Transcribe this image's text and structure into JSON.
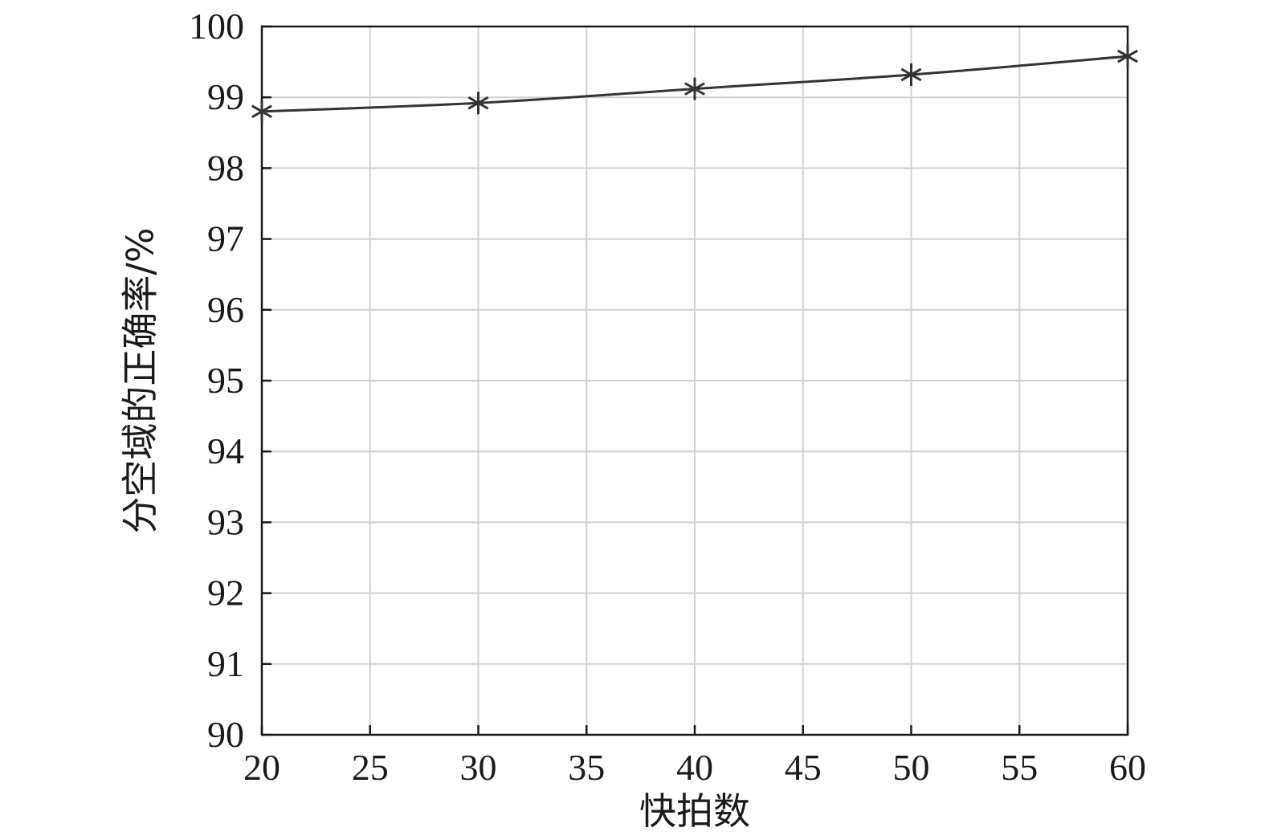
{
  "chart_data": {
    "type": "line",
    "xlabel": "快拍数",
    "ylabel": "分空域的正确率/%",
    "xlim": [
      20,
      60
    ],
    "ylim": [
      90,
      100
    ],
    "xticks": [
      20,
      25,
      30,
      35,
      40,
      45,
      50,
      55,
      60
    ],
    "yticks": [
      90,
      91,
      92,
      93,
      94,
      95,
      96,
      97,
      98,
      99,
      100
    ],
    "grid": true,
    "series": [
      {
        "marker": "asterisk",
        "color": "#333333",
        "x": [
          20,
          30,
          40,
          50,
          60
        ],
        "y": [
          98.8,
          98.92,
          99.12,
          99.32,
          99.58
        ]
      }
    ]
  }
}
